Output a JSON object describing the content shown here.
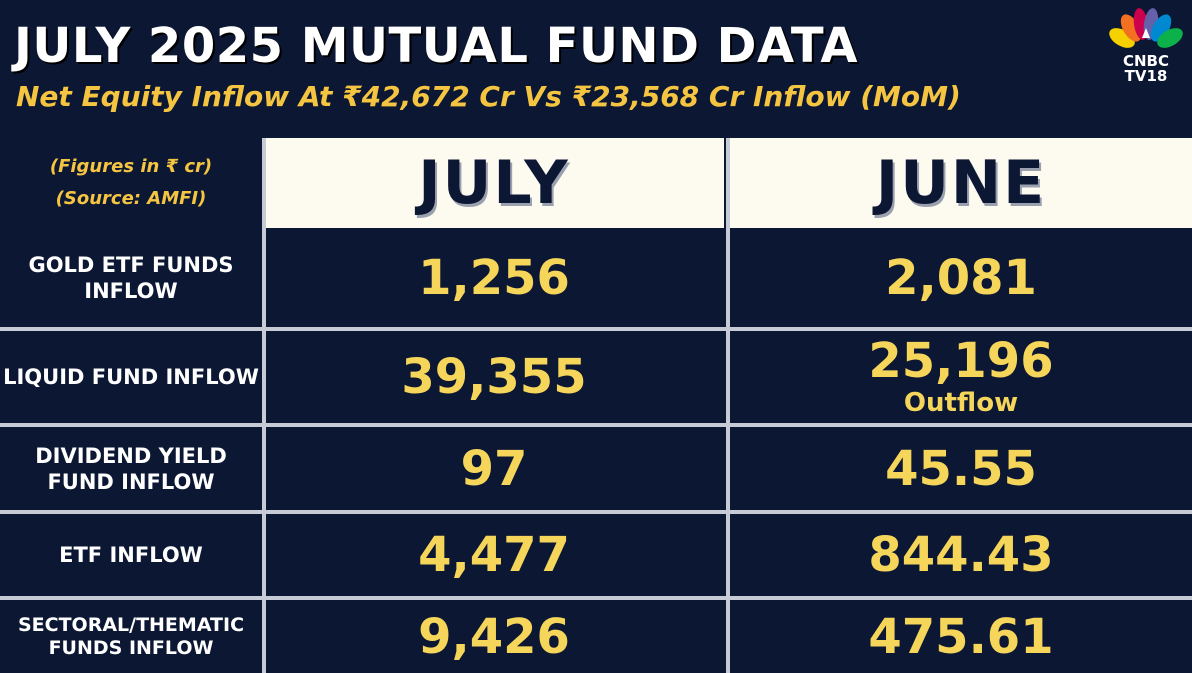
{
  "header": {
    "title": "JULY 2025 MUTUAL FUND DATA",
    "subtitle": "Net Equity Inflow At ₹42,672 Cr Vs  ₹23,568 Cr Inflow (MoM)"
  },
  "logo": {
    "line1": "CNBC",
    "line2": "TV18",
    "icon": "peacock-logo-icon"
  },
  "table": {
    "note_line1": "(Figures in ₹ cr)",
    "note_line2": "(Source: AMFI)",
    "columns": [
      "JULY",
      "JUNE"
    ],
    "rows": [
      {
        "label": "GOLD ETF FUNDS INFLOW",
        "july": "1,256",
        "june": "2,081",
        "june_note": ""
      },
      {
        "label": "LIQUID FUND INFLOW",
        "july": "39,355",
        "june": "25,196",
        "june_note": "Outflow"
      },
      {
        "label": "DIVIDEND YIELD FUND INFLOW",
        "july": "97",
        "june": "45.55",
        "june_note": ""
      },
      {
        "label": "ETF INFLOW",
        "july": "4,477",
        "june": "844.43",
        "june_note": ""
      },
      {
        "label": "SECTORAL/THEMATIC FUNDS INFLOW",
        "july": "9,426",
        "june": "475.61",
        "june_note": ""
      }
    ]
  },
  "colors": {
    "background": "#0c1733",
    "accent": "#f5c542",
    "header_cell": "#fdfaf0"
  }
}
